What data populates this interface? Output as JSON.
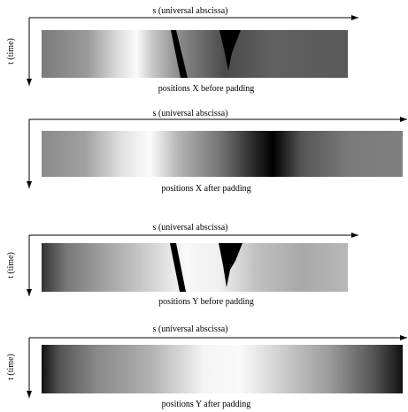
{
  "panels": [
    {
      "axis_s": "s (universal abscissa)",
      "axis_t": "t (time)",
      "caption": "positions X before padding"
    },
    {
      "axis_s": "s (universal abscissa)",
      "caption": "positions X after padding"
    },
    {
      "axis_s": "s (universal abscissa)",
      "axis_t": "t (time)",
      "caption": "positions Y before padding"
    },
    {
      "axis_s": "s (universal abscissa)",
      "axis_t": "t (time)",
      "caption": "positions Y after padding"
    }
  ]
}
